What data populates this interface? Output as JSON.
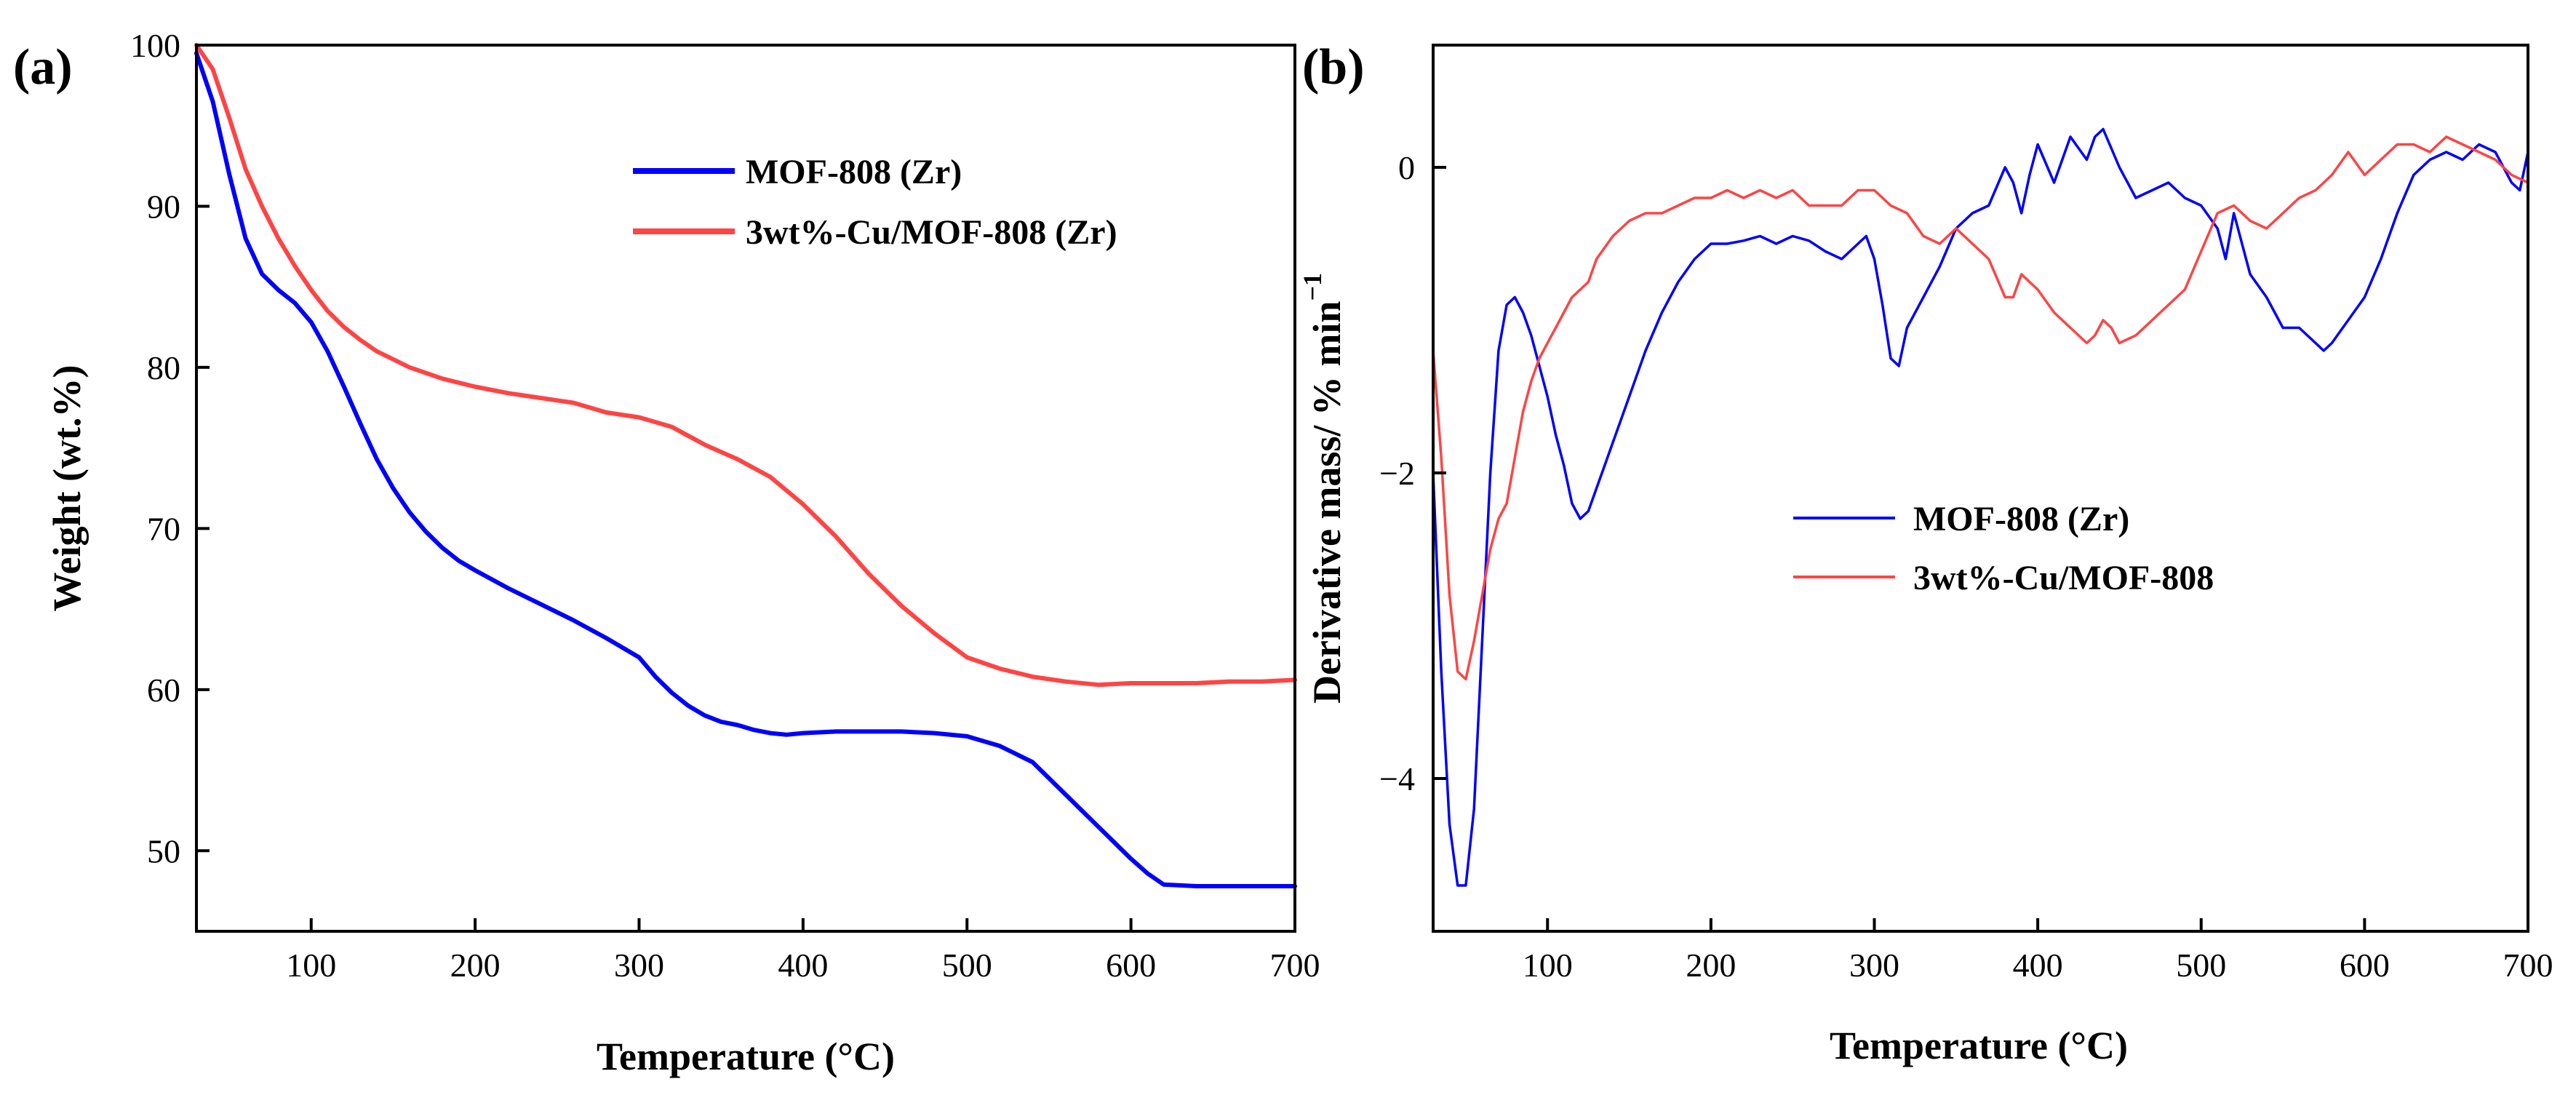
{
  "chart_data": [
    {
      "type": "line",
      "panel_label": "(a)",
      "xlabel": "Temperature (°C)",
      "ylabel": "Weight (wt.%)",
      "xlim": [
        30,
        700
      ],
      "ylim": [
        45,
        100
      ],
      "xticks": [
        100,
        200,
        300,
        400,
        500,
        600,
        700
      ],
      "yticks": [
        50,
        60,
        70,
        80,
        90,
        100
      ],
      "legend_position": "top-right",
      "series": [
        {
          "name": "MOF-808 (Zr)",
          "color": "#0000ff",
          "x": [
            30,
            40,
            50,
            60,
            70,
            80,
            90,
            100,
            110,
            120,
            130,
            140,
            150,
            160,
            170,
            180,
            190,
            200,
            220,
            240,
            260,
            280,
            300,
            310,
            320,
            330,
            340,
            350,
            360,
            370,
            380,
            390,
            400,
            420,
            440,
            460,
            480,
            500,
            520,
            540,
            560,
            580,
            600,
            610,
            620,
            640,
            660,
            680,
            700
          ],
          "y": [
            99.5,
            96.5,
            92,
            88,
            85.8,
            84.8,
            84,
            82.8,
            81,
            78.8,
            76.5,
            74.3,
            72.5,
            71,
            69.8,
            68.8,
            68,
            67.4,
            66.3,
            65.3,
            64.3,
            63.2,
            62,
            60.8,
            59.8,
            59,
            58.4,
            58,
            57.8,
            57.5,
            57.3,
            57.2,
            57.3,
            57.4,
            57.4,
            57.4,
            57.3,
            57.1,
            56.5,
            55.5,
            53.5,
            51.5,
            49.5,
            48.6,
            47.9,
            47.8,
            47.8,
            47.8,
            47.8
          ]
        },
        {
          "name": "3wt%-Cu/MOF-808 (Zr)",
          "color": "#ff4444",
          "x": [
            30,
            40,
            50,
            60,
            70,
            80,
            90,
            100,
            110,
            120,
            130,
            140,
            150,
            160,
            180,
            200,
            220,
            240,
            260,
            280,
            300,
            320,
            340,
            360,
            380,
            400,
            420,
            440,
            460,
            480,
            500,
            520,
            540,
            560,
            580,
            600,
            620,
            640,
            660,
            680,
            700
          ],
          "y": [
            100,
            98.5,
            95.5,
            92.3,
            90,
            88,
            86.3,
            84.8,
            83.5,
            82.5,
            81.7,
            81,
            80.5,
            80,
            79.3,
            78.8,
            78.4,
            78.1,
            77.8,
            77.2,
            76.9,
            76.3,
            75.2,
            74.3,
            73.2,
            71.5,
            69.5,
            67.2,
            65.2,
            63.5,
            62,
            61.3,
            60.8,
            60.5,
            60.3,
            60.4,
            60.4,
            60.4,
            60.5,
            60.5,
            60.6
          ]
        }
      ]
    },
    {
      "type": "line",
      "panel_label": "(b)",
      "xlabel": "Temperature (°C)",
      "ylabel": "Derivative mass/ % min",
      "ylabel_sup": "−1",
      "xlim": [
        30,
        700
      ],
      "ylim": [
        -5,
        0.8
      ],
      "xticks": [
        100,
        200,
        300,
        400,
        500,
        600,
        700
      ],
      "yticks": [
        -4,
        -2,
        0
      ],
      "legend_position": "center-right",
      "series": [
        {
          "name": "MOF-808 (Zr)",
          "color": "#0000ff",
          "x": [
            30,
            35,
            40,
            45,
            50,
            55,
            60,
            65,
            70,
            75,
            80,
            85,
            90,
            95,
            100,
            105,
            110,
            115,
            120,
            125,
            130,
            135,
            140,
            150,
            160,
            170,
            180,
            190,
            200,
            210,
            220,
            230,
            240,
            250,
            260,
            270,
            280,
            290,
            295,
            300,
            305,
            310,
            315,
            320,
            330,
            340,
            350,
            360,
            370,
            380,
            385,
            390,
            395,
            400,
            410,
            420,
            430,
            435,
            440,
            450,
            460,
            470,
            480,
            490,
            500,
            510,
            515,
            520,
            530,
            540,
            550,
            560,
            570,
            575,
            580,
            590,
            600,
            610,
            620,
            630,
            640,
            650,
            660,
            670,
            680,
            690,
            695,
            700
          ],
          "y": [
            -2,
            -3.3,
            -4.3,
            -4.7,
            -4.7,
            -4.2,
            -3.1,
            -2,
            -1.2,
            -0.9,
            -0.85,
            -0.95,
            -1.1,
            -1.3,
            -1.5,
            -1.75,
            -1.95,
            -2.2,
            -2.3,
            -2.25,
            -2.1,
            -1.95,
            -1.8,
            -1.5,
            -1.2,
            -0.95,
            -0.75,
            -0.6,
            -0.5,
            -0.5,
            -0.48,
            -0.45,
            -0.5,
            -0.45,
            -0.48,
            -0.55,
            -0.6,
            -0.5,
            -0.45,
            -0.6,
            -0.9,
            -1.25,
            -1.3,
            -1.05,
            -0.85,
            -0.65,
            -0.4,
            -0.3,
            -0.25,
            0,
            -0.1,
            -0.3,
            -0.05,
            0.15,
            -0.1,
            0.2,
            0.05,
            0.2,
            0.25,
            0,
            -0.2,
            -0.15,
            -0.1,
            -0.2,
            -0.25,
            -0.4,
            -0.6,
            -0.3,
            -0.7,
            -0.85,
            -1.05,
            -1.05,
            -1.15,
            -1.2,
            -1.15,
            -1.0,
            -0.85,
            -0.6,
            -0.3,
            -0.05,
            0.05,
            0.1,
            0.05,
            0.15,
            0.1,
            -0.1,
            -0.15,
            0.1
          ]
        },
        {
          "name": "3wt%-Cu/MOF-808",
          "color": "#ff4444",
          "x": [
            30,
            35,
            40,
            45,
            50,
            55,
            60,
            65,
            70,
            75,
            80,
            85,
            90,
            95,
            100,
            105,
            110,
            115,
            120,
            125,
            130,
            140,
            150,
            160,
            170,
            180,
            190,
            200,
            210,
            220,
            230,
            240,
            250,
            260,
            270,
            280,
            290,
            300,
            310,
            320,
            330,
            340,
            350,
            360,
            370,
            380,
            385,
            390,
            395,
            400,
            410,
            420,
            430,
            435,
            440,
            445,
            450,
            460,
            470,
            480,
            490,
            500,
            510,
            520,
            530,
            540,
            550,
            560,
            570,
            580,
            590,
            600,
            610,
            620,
            630,
            640,
            650,
            660,
            670,
            680,
            690,
            700
          ],
          "y": [
            -1.2,
            -1.9,
            -2.8,
            -3.3,
            -3.35,
            -3.1,
            -2.8,
            -2.5,
            -2.3,
            -2.2,
            -1.9,
            -1.6,
            -1.4,
            -1.25,
            -1.15,
            -1.05,
            -0.95,
            -0.85,
            -0.8,
            -0.75,
            -0.6,
            -0.45,
            -0.35,
            -0.3,
            -0.3,
            -0.25,
            -0.2,
            -0.2,
            -0.15,
            -0.2,
            -0.15,
            -0.2,
            -0.15,
            -0.25,
            -0.25,
            -0.25,
            -0.15,
            -0.15,
            -0.25,
            -0.3,
            -0.45,
            -0.5,
            -0.4,
            -0.5,
            -0.6,
            -0.85,
            -0.85,
            -0.7,
            -0.75,
            -0.8,
            -0.95,
            -1.05,
            -1.15,
            -1.1,
            -1.0,
            -1.05,
            -1.15,
            -1.1,
            -1.0,
            -0.9,
            -0.8,
            -0.55,
            -0.3,
            -0.25,
            -0.35,
            -0.4,
            -0.3,
            -0.2,
            -0.15,
            -0.05,
            0.1,
            -0.05,
            0.05,
            0.15,
            0.15,
            0.1,
            0.2,
            0.15,
            0.1,
            0.05,
            -0.05,
            -0.1
          ]
        }
      ]
    }
  ]
}
